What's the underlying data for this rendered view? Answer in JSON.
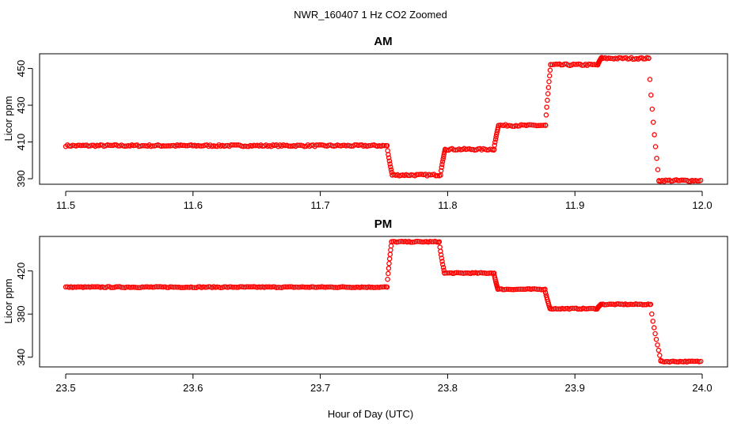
{
  "figure": {
    "title": "NWR_160407  1 Hz CO2 Zoomed",
    "xlabel": "Hour of Day (UTC)"
  },
  "colors": {
    "points": "#ff0000",
    "axes": "#000000"
  },
  "chart_data": [
    {
      "type": "scatter",
      "title": "AM",
      "ylabel": "Licor ppm",
      "xlim": [
        11.5,
        12.0
      ],
      "ylim": [
        387,
        458
      ],
      "x_ticks": [
        "11.5",
        "11.6",
        "11.7",
        "11.8",
        "11.9",
        "12.0"
      ],
      "y_ticks": [
        "390",
        "410",
        "430",
        "450"
      ],
      "grid": false,
      "marker": "open-circle",
      "segments": [
        {
          "x_start": 11.5,
          "x_end": 11.7525,
          "y": 408
        },
        {
          "x_start": 11.7525,
          "x_end": 11.7565,
          "y": [
            408,
            392
          ]
        },
        {
          "x_start": 11.7565,
          "x_end": 11.7945,
          "y": 392
        },
        {
          "x_start": 11.7945,
          "x_end": 11.798,
          "y": [
            392,
            406
          ]
        },
        {
          "x_start": 11.798,
          "x_end": 11.8365,
          "y": 406
        },
        {
          "x_start": 11.8365,
          "x_end": 11.84,
          "y": [
            406,
            419
          ]
        },
        {
          "x_start": 11.84,
          "x_end": 11.877,
          "y": 419
        },
        {
          "x_start": 11.877,
          "x_end": 11.881,
          "y": [
            419,
            452
          ]
        },
        {
          "x_start": 11.881,
          "x_end": 11.918,
          "y": 452
        },
        {
          "x_start": 11.918,
          "x_end": 11.921,
          "y": [
            452,
            456
          ]
        },
        {
          "x_start": 11.921,
          "x_end": 11.958,
          "y": 455.5
        },
        {
          "x_start": 11.958,
          "x_end": 11.966,
          "y": [
            455.5,
            389
          ]
        },
        {
          "x_start": 11.966,
          "x_end": 12.0,
          "y": 389
        }
      ]
    },
    {
      "type": "scatter",
      "title": "PM",
      "ylabel": "Licor ppm",
      "xlim": [
        23.5,
        24.0
      ],
      "ylim": [
        331,
        452
      ],
      "x_ticks": [
        "23.5",
        "23.6",
        "23.7",
        "23.8",
        "23.9",
        "24.0"
      ],
      "y_ticks": [
        "340",
        "380",
        "420"
      ],
      "grid": false,
      "marker": "open-circle",
      "segments": [
        {
          "x_start": 23.5,
          "x_end": 23.7525,
          "y": 405
        },
        {
          "x_start": 23.7525,
          "x_end": 23.756,
          "y": [
            405,
            447
          ]
        },
        {
          "x_start": 23.756,
          "x_end": 23.7935,
          "y": 447
        },
        {
          "x_start": 23.7935,
          "x_end": 23.7975,
          "y": [
            447,
            418
          ]
        },
        {
          "x_start": 23.7975,
          "x_end": 23.8365,
          "y": 418
        },
        {
          "x_start": 23.8365,
          "x_end": 23.8395,
          "y": [
            418,
            403
          ]
        },
        {
          "x_start": 23.8395,
          "x_end": 23.8765,
          "y": 403
        },
        {
          "x_start": 23.8765,
          "x_end": 23.8805,
          "y": [
            403,
            385
          ]
        },
        {
          "x_start": 23.8805,
          "x_end": 23.9175,
          "y": 385
        },
        {
          "x_start": 23.9175,
          "x_end": 23.9205,
          "y": [
            385,
            389
          ]
        },
        {
          "x_start": 23.9205,
          "x_end": 23.9595,
          "y": 389
        },
        {
          "x_start": 23.9595,
          "x_end": 23.9675,
          "y": [
            389,
            337
          ]
        },
        {
          "x_start": 23.9675,
          "x_end": 24.0,
          "y": 336
        }
      ]
    }
  ]
}
